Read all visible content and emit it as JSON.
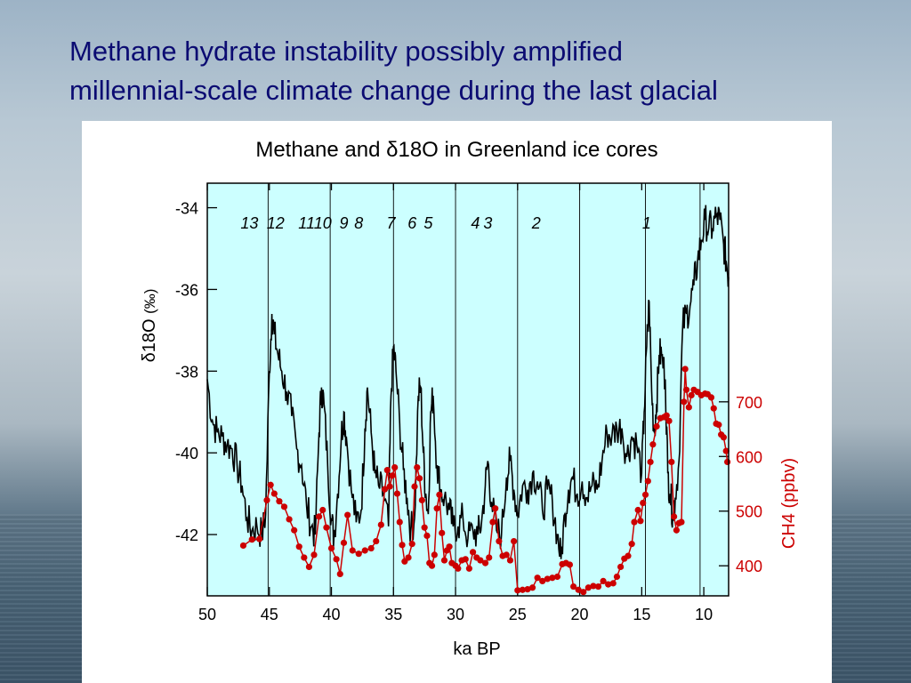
{
  "slide": {
    "title_line1": "Methane hydrate instability possibly amplified",
    "title_line2": "millennial-scale climate change during the last glacial"
  },
  "chart_data": {
    "type": "line",
    "title": "Methane and δ18O in Greenland ice cores",
    "xlabel": "ka BP",
    "xlim": [
      50,
      8
    ],
    "x_reversed": true,
    "x_ticks": [
      50,
      45,
      40,
      35,
      30,
      25,
      20,
      15,
      10
    ],
    "event_lines_ka": [
      45.1,
      40.1,
      35.0,
      30.0,
      25.0,
      20.0,
      14.7,
      10.3
    ],
    "interstadial_labels": [
      {
        "text": "13",
        "ka": 46.6
      },
      {
        "text": "12",
        "ka": 44.5
      },
      {
        "text": "11",
        "ka": 42.0
      },
      {
        "text": "10",
        "ka": 40.7
      },
      {
        "text": "9",
        "ka": 39.0
      },
      {
        "text": "8",
        "ka": 37.8
      },
      {
        "text": "7",
        "ka": 35.2
      },
      {
        "text": "6",
        "ka": 33.5
      },
      {
        "text": "5",
        "ka": 32.2
      },
      {
        "text": "4",
        "ka": 28.4
      },
      {
        "text": "3",
        "ka": 27.4
      },
      {
        "text": "2",
        "ka": 23.5
      },
      {
        "text": "1",
        "ka": 14.6
      }
    ],
    "d18O": {
      "ylabel_main": "δ18O",
      "ylabel_unit": "(‰)",
      "ylim": [
        -43.5,
        -33.4
      ],
      "y_ticks": [
        -34,
        -36,
        -38,
        -40,
        -42
      ],
      "color": "#000000",
      "points": [
        [
          50,
          -38.2
        ],
        [
          49.6,
          -39.2
        ],
        [
          49.2,
          -39.5
        ],
        [
          48.8,
          -39.6
        ],
        [
          48.4,
          -39.8
        ],
        [
          48,
          -39.9
        ],
        [
          47.6,
          -40.3
        ],
        [
          47.2,
          -40.8
        ],
        [
          46.8,
          -41.6
        ],
        [
          46.4,
          -41.9
        ],
        [
          46,
          -41.8
        ],
        [
          45.6,
          -42.0
        ],
        [
          45.3,
          -41.5
        ],
        [
          45.0,
          -38.0
        ],
        [
          44.8,
          -36.6
        ],
        [
          44.6,
          -37.1
        ],
        [
          44.3,
          -37.6
        ],
        [
          44.0,
          -38.0
        ],
        [
          43.6,
          -38.5
        ],
        [
          43.2,
          -39.1
        ],
        [
          42.8,
          -39.9
        ],
        [
          42.4,
          -40.3
        ],
        [
          42.0,
          -41.3
        ],
        [
          41.6,
          -41.8
        ],
        [
          41.3,
          -42.0
        ],
        [
          41.0,
          -39.5
        ],
        [
          40.8,
          -38.4
        ],
        [
          40.6,
          -38.8
        ],
        [
          40.3,
          -40.3
        ],
        [
          40.0,
          -41.6
        ],
        [
          39.8,
          -42.1
        ],
        [
          39.5,
          -41.0
        ],
        [
          39.2,
          -39.6
        ],
        [
          39.0,
          -39.0
        ],
        [
          38.8,
          -39.6
        ],
        [
          38.4,
          -40.9
        ],
        [
          38.0,
          -41.7
        ],
        [
          37.6,
          -41.4
        ],
        [
          37.3,
          -39.4
        ],
        [
          37.1,
          -38.4
        ],
        [
          36.8,
          -39.5
        ],
        [
          36.5,
          -40.5
        ],
        [
          36.2,
          -40.8
        ],
        [
          35.8,
          -41.0
        ],
        [
          35.4,
          -41.8
        ],
        [
          35.2,
          -38.6
        ],
        [
          35.0,
          -37.4
        ],
        [
          34.8,
          -38.0
        ],
        [
          34.5,
          -39.3
        ],
        [
          34.2,
          -40.4
        ],
        [
          33.9,
          -41.1
        ],
        [
          33.6,
          -41.9
        ],
        [
          33.3,
          -41.6
        ],
        [
          33.0,
          -38.6
        ],
        [
          32.8,
          -38.4
        ],
        [
          32.6,
          -40.0
        ],
        [
          32.4,
          -41.0
        ],
        [
          32.2,
          -41.5
        ],
        [
          32.0,
          -39.0
        ],
        [
          31.8,
          -38.6
        ],
        [
          31.5,
          -40.3
        ],
        [
          31.2,
          -40.9
        ],
        [
          30.9,
          -41.1
        ],
        [
          30.5,
          -41.4
        ],
        [
          30.2,
          -41.8
        ],
        [
          29.8,
          -41.8
        ],
        [
          29.4,
          -41.6
        ],
        [
          29.0,
          -42.1
        ],
        [
          28.6,
          -41.9
        ],
        [
          28.2,
          -42.0
        ],
        [
          27.9,
          -41.7
        ],
        [
          27.6,
          -40.8
        ],
        [
          27.4,
          -40.2
        ],
        [
          27.1,
          -41.2
        ],
        [
          26.7,
          -41.9
        ],
        [
          26.3,
          -42.0
        ],
        [
          25.9,
          -40.6
        ],
        [
          25.6,
          -40.2
        ],
        [
          25.3,
          -40.9
        ],
        [
          25.0,
          -41.5
        ],
        [
          24.6,
          -40.8
        ],
        [
          24.2,
          -40.9
        ],
        [
          23.8,
          -40.5
        ],
        [
          23.4,
          -40.7
        ],
        [
          23.0,
          -41.4
        ],
        [
          22.6,
          -40.9
        ],
        [
          22.2,
          -41.2
        ],
        [
          21.8,
          -42.0
        ],
        [
          21.5,
          -42.6
        ],
        [
          21.2,
          -41.5
        ],
        [
          20.9,
          -40.9
        ],
        [
          20.6,
          -40.6
        ],
        [
          20.2,
          -41.0
        ],
        [
          19.8,
          -40.7
        ],
        [
          19.4,
          -41.1
        ],
        [
          19.0,
          -40.8
        ],
        [
          18.6,
          -40.9
        ],
        [
          18.2,
          -40.2
        ],
        [
          17.8,
          -39.5
        ],
        [
          17.4,
          -39.6
        ],
        [
          17.0,
          -39.4
        ],
        [
          16.6,
          -39.4
        ],
        [
          16.2,
          -40.1
        ],
        [
          15.8,
          -39.6
        ],
        [
          15.4,
          -39.8
        ],
        [
          15.0,
          -40.5
        ],
        [
          14.8,
          -39.0
        ],
        [
          14.6,
          -37.4
        ],
        [
          14.4,
          -36.3
        ],
        [
          14.2,
          -38.5
        ],
        [
          14.0,
          -39.5
        ],
        [
          13.8,
          -38.8
        ],
        [
          13.6,
          -37.6
        ],
        [
          13.4,
          -37.6
        ],
        [
          13.1,
          -38.2
        ],
        [
          12.9,
          -40.5
        ],
        [
          12.7,
          -41.0
        ],
        [
          12.5,
          -41.5
        ],
        [
          12.3,
          -41.1
        ],
        [
          12.0,
          -40.2
        ],
        [
          11.7,
          -36.9
        ],
        [
          11.4,
          -36.6
        ],
        [
          11.1,
          -36.4
        ],
        [
          10.8,
          -35.9
        ],
        [
          10.5,
          -35.3
        ],
        [
          10.2,
          -34.8
        ],
        [
          9.9,
          -34.3
        ],
        [
          9.6,
          -34.5
        ],
        [
          9.3,
          -34.5
        ],
        [
          9.0,
          -34.2
        ],
        [
          8.7,
          -34.3
        ],
        [
          8.4,
          -34.9
        ],
        [
          8.2,
          -35.3
        ],
        [
          8,
          -35.7
        ]
      ]
    },
    "ch4": {
      "ylabel": "CH4 (ppbv)",
      "ylim": [
        345,
        1100
      ],
      "y_ticks": [
        400,
        500,
        600,
        700
      ],
      "color": "#cc0000",
      "points": [
        [
          47.1,
          437
        ],
        [
          46.4,
          448
        ],
        [
          45.8,
          449
        ],
        [
          45.2,
          520
        ],
        [
          44.9,
          548
        ],
        [
          44.6,
          532
        ],
        [
          44.2,
          518
        ],
        [
          43.8,
          508
        ],
        [
          43.4,
          485
        ],
        [
          43.0,
          465
        ],
        [
          42.6,
          435
        ],
        [
          42.2,
          415
        ],
        [
          41.8,
          398
        ],
        [
          41.4,
          420
        ],
        [
          41.0,
          490
        ],
        [
          40.7,
          502
        ],
        [
          40.4,
          470
        ],
        [
          40.0,
          432
        ],
        [
          39.6,
          412
        ],
        [
          39.3,
          385
        ],
        [
          39.0,
          442
        ],
        [
          38.7,
          493
        ],
        [
          38.3,
          428
        ],
        [
          37.8,
          422
        ],
        [
          37.3,
          428
        ],
        [
          36.8,
          432
        ],
        [
          36.4,
          445
        ],
        [
          36.0,
          475
        ],
        [
          35.7,
          540
        ],
        [
          35.5,
          575
        ],
        [
          35.3,
          545
        ],
        [
          35.1,
          565
        ],
        [
          34.9,
          580
        ],
        [
          34.7,
          532
        ],
        [
          34.5,
          480
        ],
        [
          34.3,
          438
        ],
        [
          34.1,
          408
        ],
        [
          33.8,
          415
        ],
        [
          33.5,
          440
        ],
        [
          33.3,
          545
        ],
        [
          33.1,
          580
        ],
        [
          32.9,
          560
        ],
        [
          32.7,
          520
        ],
        [
          32.5,
          470
        ],
        [
          32.3,
          455
        ],
        [
          32.1,
          405
        ],
        [
          31.9,
          400
        ],
        [
          31.7,
          420
        ],
        [
          31.5,
          505
        ],
        [
          31.3,
          530
        ],
        [
          31.1,
          460
        ],
        [
          30.9,
          410
        ],
        [
          30.7,
          428
        ],
        [
          30.5,
          435
        ],
        [
          30.3,
          405
        ],
        [
          30.0,
          400
        ],
        [
          29.8,
          395
        ],
        [
          29.5,
          410
        ],
        [
          29.2,
          412
        ],
        [
          28.9,
          395
        ],
        [
          28.6,
          425
        ],
        [
          28.3,
          415
        ],
        [
          28.0,
          410
        ],
        [
          27.6,
          405
        ],
        [
          27.3,
          415
        ],
        [
          27.0,
          480
        ],
        [
          26.8,
          505
        ],
        [
          26.5,
          445
        ],
        [
          26.2,
          418
        ],
        [
          25.9,
          420
        ],
        [
          25.6,
          410
        ],
        [
          25.3,
          445
        ],
        [
          25.0,
          355
        ],
        [
          24.6,
          356
        ],
        [
          24.2,
          357
        ],
        [
          23.8,
          360
        ],
        [
          23.4,
          378
        ],
        [
          23.0,
          372
        ],
        [
          22.6,
          376
        ],
        [
          22.2,
          378
        ],
        [
          21.8,
          380
        ],
        [
          21.4,
          403
        ],
        [
          21.1,
          405
        ],
        [
          20.8,
          402
        ],
        [
          20.5,
          362
        ],
        [
          20.1,
          356
        ],
        [
          19.7,
          352
        ],
        [
          19.3,
          360
        ],
        [
          18.9,
          363
        ],
        [
          18.5,
          362
        ],
        [
          18.1,
          372
        ],
        [
          17.7,
          366
        ],
        [
          17.3,
          368
        ],
        [
          17.0,
          380
        ],
        [
          16.7,
          398
        ],
        [
          16.4,
          413
        ],
        [
          16.1,
          418
        ],
        [
          15.8,
          440
        ],
        [
          15.6,
          480
        ],
        [
          15.3,
          502
        ],
        [
          15.1,
          482
        ],
        [
          14.9,
          515
        ],
        [
          14.7,
          530
        ],
        [
          14.5,
          555
        ],
        [
          14.3,
          590
        ],
        [
          14.1,
          622
        ],
        [
          13.8,
          655
        ],
        [
          13.5,
          670
        ],
        [
          13.2,
          672
        ],
        [
          13.0,
          675
        ],
        [
          12.8,
          665
        ],
        [
          12.6,
          590
        ],
        [
          12.4,
          490
        ],
        [
          12.2,
          465
        ],
        [
          12.0,
          478
        ],
        [
          11.8,
          480
        ],
        [
          11.6,
          700
        ],
        [
          11.5,
          760
        ],
        [
          11.4,
          722
        ],
        [
          11.2,
          690
        ],
        [
          11.0,
          712
        ],
        [
          10.8,
          722
        ],
        [
          10.5,
          718
        ],
        [
          10.2,
          712
        ],
        [
          9.9,
          715
        ],
        [
          9.7,
          714
        ],
        [
          9.4,
          708
        ],
        [
          9.2,
          688
        ],
        [
          9.0,
          660
        ],
        [
          8.8,
          658
        ],
        [
          8.6,
          640
        ],
        [
          8.4,
          635
        ],
        [
          8.2,
          610
        ],
        [
          8.1,
          590
        ]
      ]
    }
  }
}
